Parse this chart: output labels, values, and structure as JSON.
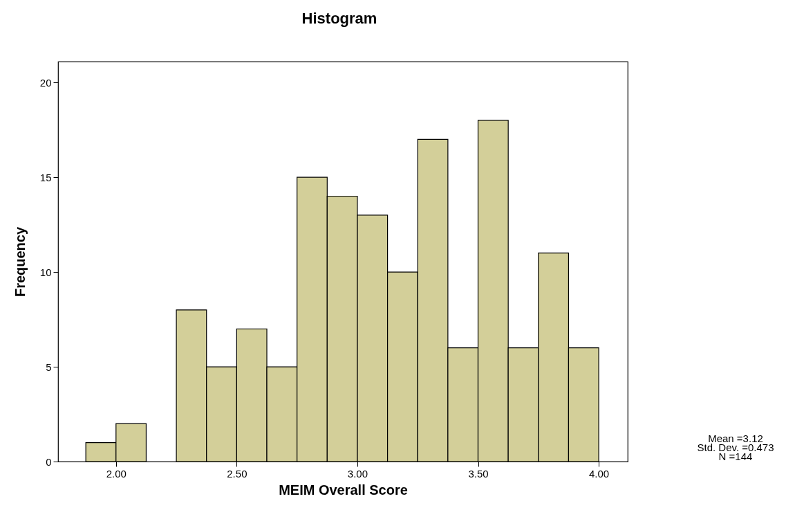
{
  "chart_data": {
    "type": "histogram",
    "title": "Histogram",
    "xlabel": "MEIM Overall Score",
    "ylabel": "Frequency",
    "bins": [
      1.875,
      2.0,
      2.125,
      2.25,
      2.375,
      2.5,
      2.625,
      2.75,
      2.875,
      3.0,
      3.125,
      3.25,
      3.375,
      3.5,
      3.625,
      3.75,
      3.875,
      4.0
    ],
    "values": [
      1,
      2,
      0,
      8,
      5,
      7,
      5,
      15,
      14,
      13,
      10,
      17,
      6,
      18,
      6,
      11,
      6
    ],
    "color": "#d3cf99",
    "xlim": [
      1.76,
      4.12
    ],
    "xticks": [
      {
        "value": 2,
        "label": "2.00"
      },
      {
        "value": 2.5,
        "label": "2.50"
      },
      {
        "value": 3,
        "label": "3.00"
      },
      {
        "value": 3.5,
        "label": "3.50"
      },
      {
        "value": 4,
        "label": "4.00"
      }
    ],
    "ylim": [
      0,
      21.1
    ],
    "yticks": [
      0,
      5,
      10,
      15,
      20
    ],
    "grid": false,
    "annotations": [
      "Mean =3.12",
      "Std. Dev. =0.473",
      "N =144"
    ]
  }
}
